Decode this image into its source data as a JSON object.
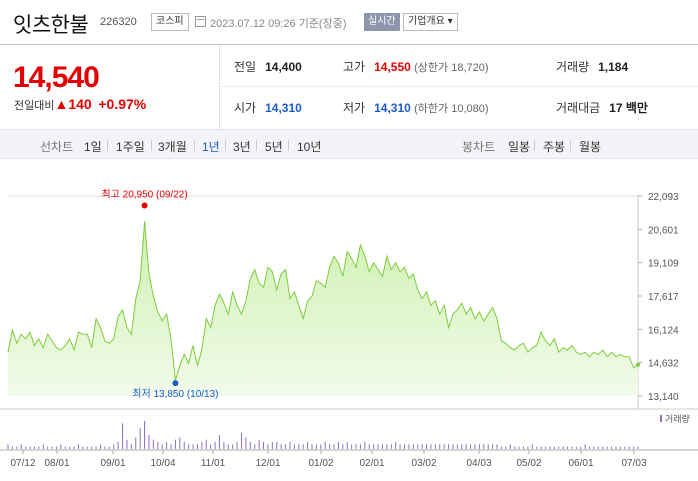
{
  "header": {
    "name": "잇츠한불",
    "code": "226320",
    "market": "코스피",
    "datetime": "2023.07.12 09:26 기준(장중)",
    "realtime": "실시간",
    "overview": "기업개요 ▾"
  },
  "summary": {
    "price": "14,540",
    "compare_label": "전일대비",
    "change": "▲140",
    "change_pct": "+0.97%",
    "prev_label": "전일",
    "prev": "14,400",
    "high_label": "고가",
    "high": "14,550",
    "upper_limit": "(상한가 18,720)",
    "volume_label": "거래량",
    "volume": "1,184",
    "open_label": "시가",
    "open": "14,310",
    "low_label": "저가",
    "low": "14,310",
    "lower_limit": "(하한가 10,080)",
    "amount_label": "거래대금",
    "amount": "17 백만"
  },
  "tabs": {
    "line_label": "선차트",
    "line_items": [
      "1일",
      "1주일",
      "3개월",
      "1년",
      "3년",
      "5년",
      "10년"
    ],
    "active": "1년",
    "candle_label": "봉차트",
    "candle_items": [
      "일봉",
      "주봉",
      "월봉"
    ]
  },
  "colors": {
    "up": "#e30000",
    "down": "#1a5ccc",
    "line": "#7ccd3a",
    "fill_top": "#cdf0b0",
    "fill_bottom": "#f2fbea",
    "volume": "#8a6fc4"
  },
  "chart_data": {
    "type": "area",
    "y_ticks": [
      "22,093",
      "20,601",
      "19,109",
      "17,617",
      "16,124",
      "14,632",
      "13,140"
    ],
    "ylim": [
      13140,
      22093
    ],
    "x_ticks": [
      "07/12",
      "08/01",
      "09/01",
      "10/04",
      "11/01",
      "12/01",
      "01/02",
      "02/01",
      "03/02",
      "04/03",
      "05/02",
      "06/01",
      "07/03"
    ],
    "volume_label": "거래량",
    "high_annotation": "최고 20,950 (09/22)",
    "low_annotation": "최저 13,850 (10/13)",
    "high_index": 31,
    "low_index": 38,
    "series": [
      {
        "values": [
          15100,
          16100,
          15500,
          15900,
          15700,
          16000,
          15400,
          15700,
          15300,
          15900,
          15600,
          15300,
          15200,
          15400,
          15700,
          15200,
          16000,
          15900,
          15900,
          15300,
          16600,
          16200,
          15600,
          15500,
          15700,
          16700,
          17000,
          16200,
          15900,
          17500,
          18300,
          20950,
          18600,
          17600,
          16900,
          16500,
          16800,
          15700,
          13850,
          14500,
          15000,
          14600,
          15400,
          14500,
          15200,
          16600,
          16200,
          17200,
          17700,
          17300,
          16800,
          17800,
          17200,
          16800,
          17400,
          18400,
          18800,
          18200,
          18000,
          18900,
          18700,
          17900,
          18600,
          18800,
          17500,
          17800,
          17200,
          16600,
          17400,
          17600,
          18300,
          18200,
          18000,
          18900,
          19400,
          19100,
          18500,
          19600,
          19300,
          18900,
          19900,
          19400,
          18700,
          19100,
          18800,
          18500,
          19400,
          18800,
          19100,
          18700,
          18900,
          18400,
          18600,
          17900,
          17500,
          17800,
          17200,
          17400,
          16800,
          17200,
          16200,
          16800,
          17000,
          17300,
          16800,
          17100,
          16600,
          16900,
          16500,
          16800,
          17100,
          16600,
          15600,
          15500,
          15300,
          15200,
          15400,
          15500,
          15100,
          15300,
          15400,
          16000,
          15600,
          15400,
          15700,
          15100,
          15300,
          15200,
          15400,
          15100,
          15000,
          15100,
          14900,
          15100,
          15000,
          15200,
          14900,
          15100,
          14900,
          15000,
          14900,
          14900,
          14400,
          14540
        ]
      }
    ],
    "volume": [
      2,
      1,
      1,
      2,
      1,
      1,
      1,
      1,
      2,
      1,
      1,
      1,
      2,
      1,
      1,
      1,
      2,
      1,
      1,
      1,
      1,
      2,
      1,
      1,
      2,
      3,
      11,
      4,
      2,
      5,
      9,
      12,
      6,
      4,
      3,
      2,
      3,
      2,
      4,
      5,
      3,
      2,
      2,
      2,
      3,
      4,
      2,
      3,
      6,
      3,
      2,
      2,
      3,
      7,
      5,
      3,
      2,
      4,
      3,
      2,
      3,
      3,
      2,
      2,
      3,
      2,
      2,
      2,
      3,
      2,
      2,
      2,
      3,
      2,
      2,
      3,
      2,
      3,
      2,
      2,
      2,
      3,
      2,
      2,
      2,
      2,
      2,
      2,
      3,
      2,
      2,
      2,
      2,
      2,
      2,
      2,
      2,
      2,
      2,
      2,
      2,
      2,
      2,
      2,
      2,
      2,
      2,
      2,
      2,
      2,
      2,
      2,
      1,
      1,
      2,
      1,
      1,
      1,
      1,
      2,
      1,
      1,
      1,
      1,
      1,
      1,
      1,
      1,
      1,
      1,
      1,
      2,
      1,
      1,
      1,
      1,
      1,
      1,
      1,
      1,
      1,
      1,
      1,
      1
    ]
  }
}
